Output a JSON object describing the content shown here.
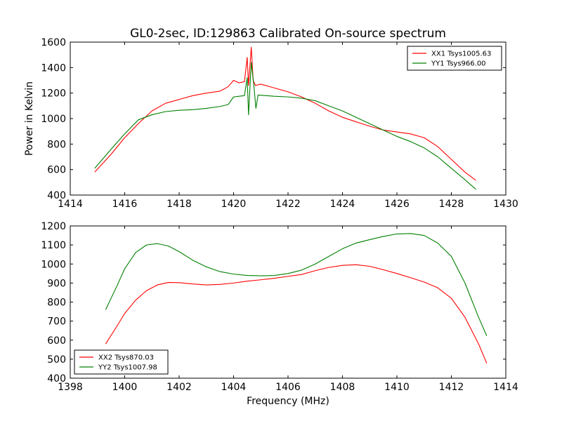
{
  "figure": {
    "title": "GL0-2sec, ID:129863 Calibrated On-source spectrum",
    "shared_xlabel": "Frequency (MHz)"
  },
  "chart_data": [
    {
      "type": "line",
      "title": "GL0-2sec, ID:129863 Calibrated On-source spectrum",
      "xlabel": "",
      "ylabel": "Power in Kelvin",
      "xlim": [
        1414,
        1430
      ],
      "ylim": [
        400,
        1600
      ],
      "xticks": [
        1414,
        1416,
        1418,
        1420,
        1422,
        1424,
        1426,
        1428,
        1430
      ],
      "yticks": [
        400,
        600,
        800,
        1000,
        1200,
        1400,
        1600
      ],
      "legend_position": "top-right",
      "grid": false,
      "series": [
        {
          "name": "XX1 Tsys1005.63",
          "color": "#ff0000",
          "points": [
            [
              1414.9,
              580
            ],
            [
              1415.5,
              720
            ],
            [
              1416.0,
              850
            ],
            [
              1416.5,
              960
            ],
            [
              1417.0,
              1060
            ],
            [
              1417.5,
              1120
            ],
            [
              1418.0,
              1150
            ],
            [
              1418.5,
              1180
            ],
            [
              1419.0,
              1200
            ],
            [
              1419.5,
              1215
            ],
            [
              1419.8,
              1250
            ],
            [
              1420.0,
              1300
            ],
            [
              1420.2,
              1280
            ],
            [
              1420.4,
              1290
            ],
            [
              1420.5,
              1480
            ],
            [
              1420.55,
              1260
            ],
            [
              1420.65,
              1560
            ],
            [
              1420.72,
              1300
            ],
            [
              1420.8,
              1260
            ],
            [
              1421.0,
              1270
            ],
            [
              1421.5,
              1240
            ],
            [
              1422.0,
              1210
            ],
            [
              1422.5,
              1170
            ],
            [
              1423.0,
              1120
            ],
            [
              1423.5,
              1060
            ],
            [
              1424.0,
              1010
            ],
            [
              1424.5,
              975
            ],
            [
              1425.0,
              940
            ],
            [
              1425.5,
              910
            ],
            [
              1426.0,
              895
            ],
            [
              1426.5,
              880
            ],
            [
              1427.0,
              850
            ],
            [
              1427.5,
              780
            ],
            [
              1428.0,
              680
            ],
            [
              1428.5,
              580
            ],
            [
              1428.9,
              515
            ]
          ]
        },
        {
          "name": "YY1 Tsys966.00",
          "color": "#008000",
          "points": [
            [
              1414.9,
              610
            ],
            [
              1415.5,
              760
            ],
            [
              1416.0,
              880
            ],
            [
              1416.5,
              990
            ],
            [
              1417.0,
              1030
            ],
            [
              1417.5,
              1055
            ],
            [
              1418.0,
              1065
            ],
            [
              1418.5,
              1070
            ],
            [
              1419.0,
              1080
            ],
            [
              1419.5,
              1095
            ],
            [
              1419.8,
              1110
            ],
            [
              1420.0,
              1170
            ],
            [
              1420.2,
              1175
            ],
            [
              1420.4,
              1180
            ],
            [
              1420.5,
              1320
            ],
            [
              1420.55,
              1030
            ],
            [
              1420.65,
              1440
            ],
            [
              1420.75,
              1250
            ],
            [
              1420.82,
              1080
            ],
            [
              1420.9,
              1185
            ],
            [
              1421.5,
              1175
            ],
            [
              1422.0,
              1170
            ],
            [
              1422.5,
              1160
            ],
            [
              1423.0,
              1140
            ],
            [
              1423.5,
              1100
            ],
            [
              1424.0,
              1060
            ],
            [
              1424.5,
              1010
            ],
            [
              1425.0,
              960
            ],
            [
              1425.5,
              910
            ],
            [
              1426.0,
              860
            ],
            [
              1426.5,
              820
            ],
            [
              1427.0,
              770
            ],
            [
              1427.5,
              700
            ],
            [
              1428.0,
              610
            ],
            [
              1428.5,
              520
            ],
            [
              1428.9,
              445
            ]
          ]
        }
      ]
    },
    {
      "type": "line",
      "title": "",
      "xlabel": "Frequency (MHz)",
      "ylabel": "",
      "xlim": [
        1398,
        1414
      ],
      "ylim": [
        400,
        1200
      ],
      "xticks": [
        1398,
        1400,
        1402,
        1404,
        1406,
        1408,
        1410,
        1412,
        1414
      ],
      "yticks": [
        400,
        500,
        600,
        700,
        800,
        900,
        1000,
        1100,
        1200
      ],
      "legend_position": "bottom-left",
      "grid": false,
      "series": [
        {
          "name": "XX2 Tsys870.03",
          "color": "#ff0000",
          "points": [
            [
              1399.3,
              580
            ],
            [
              1399.7,
              670
            ],
            [
              1400.0,
              740
            ],
            [
              1400.4,
              810
            ],
            [
              1400.8,
              860
            ],
            [
              1401.2,
              890
            ],
            [
              1401.6,
              903
            ],
            [
              1402.0,
              902
            ],
            [
              1402.5,
              895
            ],
            [
              1403.0,
              890
            ],
            [
              1403.5,
              893
            ],
            [
              1404.0,
              900
            ],
            [
              1404.5,
              910
            ],
            [
              1405.0,
              917
            ],
            [
              1405.5,
              925
            ],
            [
              1406.0,
              935
            ],
            [
              1406.5,
              945
            ],
            [
              1407.0,
              965
            ],
            [
              1407.5,
              982
            ],
            [
              1408.0,
              993
            ],
            [
              1408.5,
              996
            ],
            [
              1409.0,
              988
            ],
            [
              1409.5,
              970
            ],
            [
              1410.0,
              950
            ],
            [
              1410.5,
              928
            ],
            [
              1411.0,
              905
            ],
            [
              1411.5,
              875
            ],
            [
              1412.0,
              820
            ],
            [
              1412.5,
              720
            ],
            [
              1413.0,
              580
            ],
            [
              1413.3,
              478
            ]
          ]
        },
        {
          "name": "YY2 Tsys1007.98",
          "color": "#008000",
          "points": [
            [
              1399.3,
              760
            ],
            [
              1399.7,
              880
            ],
            [
              1400.0,
              975
            ],
            [
              1400.4,
              1060
            ],
            [
              1400.8,
              1100
            ],
            [
              1401.2,
              1107
            ],
            [
              1401.6,
              1095
            ],
            [
              1402.0,
              1065
            ],
            [
              1402.5,
              1020
            ],
            [
              1403.0,
              985
            ],
            [
              1403.5,
              960
            ],
            [
              1404.0,
              947
            ],
            [
              1404.5,
              940
            ],
            [
              1405.0,
              938
            ],
            [
              1405.5,
              940
            ],
            [
              1406.0,
              950
            ],
            [
              1406.5,
              968
            ],
            [
              1407.0,
              1000
            ],
            [
              1407.5,
              1040
            ],
            [
              1408.0,
              1080
            ],
            [
              1408.5,
              1110
            ],
            [
              1409.0,
              1128
            ],
            [
              1409.5,
              1145
            ],
            [
              1410.0,
              1158
            ],
            [
              1410.5,
              1160
            ],
            [
              1411.0,
              1150
            ],
            [
              1411.5,
              1110
            ],
            [
              1412.0,
              1040
            ],
            [
              1412.5,
              900
            ],
            [
              1413.0,
              720
            ],
            [
              1413.3,
              622
            ]
          ]
        }
      ]
    }
  ]
}
